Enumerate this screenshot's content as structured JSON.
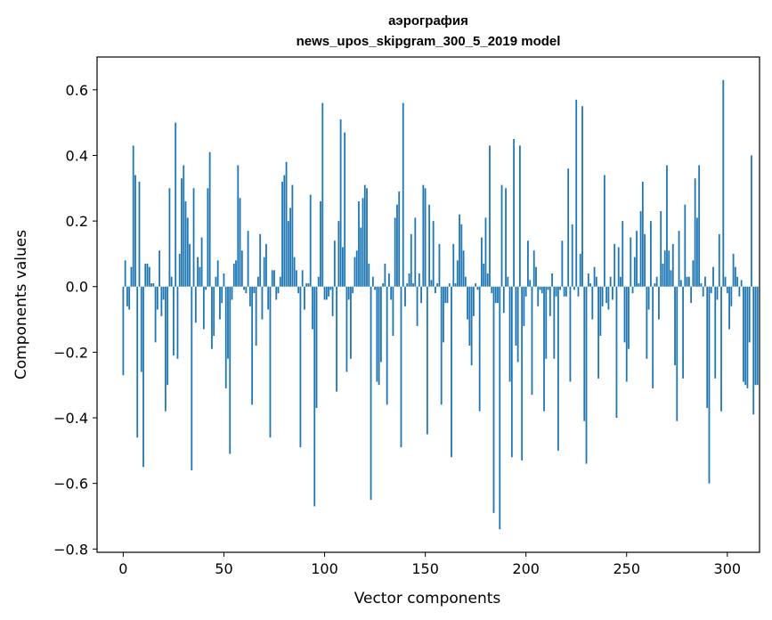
{
  "chart_data": {
    "type": "bar",
    "title": "аэрография",
    "subtitle": "news_upos_skipgram_300_5_2019 model",
    "xlabel": "Vector components",
    "ylabel": "Components values",
    "xlim": [
      -13,
      316
    ],
    "ylim": [
      -0.81,
      0.7
    ],
    "xticks": [
      0,
      50,
      100,
      150,
      200,
      250,
      300
    ],
    "xtick_labels": [
      "0",
      "50",
      "100",
      "150",
      "200",
      "250",
      "300"
    ],
    "yticks": [
      -0.8,
      -0.6,
      -0.4,
      -0.2,
      0.0,
      0.2,
      0.4,
      0.6
    ],
    "ytick_labels": [
      "−0.8",
      "−0.6",
      "−0.4",
      "−0.2",
      "0.0",
      "0.2",
      "0.4",
      "0.6"
    ],
    "bar_color": "#1f77b4",
    "grid": false,
    "values": [
      -0.27,
      0.08,
      -0.06,
      -0.07,
      0.06,
      0.43,
      0.34,
      -0.46,
      0.32,
      -0.26,
      -0.55,
      0.07,
      0.07,
      0.06,
      0.01,
      0.01,
      -0.17,
      -0.07,
      0.11,
      -0.09,
      -0.04,
      -0.38,
      -0.3,
      0.3,
      0.03,
      -0.21,
      0.5,
      -0.22,
      0.1,
      0.33,
      0.37,
      0.26,
      0.21,
      0.13,
      -0.56,
      0.3,
      -0.11,
      0.09,
      0.06,
      0.15,
      -0.13,
      -0.01,
      0.3,
      0.41,
      -0.19,
      -0.15,
      0.03,
      0.08,
      -0.1,
      -0.05,
      0.04,
      -0.31,
      -0.22,
      -0.51,
      -0.04,
      0.07,
      0.08,
      0.37,
      0.27,
      0.11,
      -0.01,
      -0.02,
      0.17,
      -0.06,
      -0.36,
      -0.02,
      -0.18,
      0.03,
      0.16,
      -0.1,
      0.09,
      0.13,
      -0.07,
      -0.46,
      0.05,
      0.05,
      -0.04,
      -0.02,
      0.03,
      0.32,
      0.34,
      0.38,
      0.2,
      0.24,
      0.31,
      0.09,
      0.05,
      -0.02,
      -0.49,
      0.05,
      -0.07,
      0.01,
      0.01,
      0.28,
      -0.13,
      -0.67,
      -0.37,
      0.03,
      0.26,
      0.56,
      -0.04,
      -0.04,
      -0.03,
      -0.01,
      -0.09,
      0.14,
      -0.32,
      0.2,
      0.51,
      0.12,
      0.47,
      -0.26,
      -0.04,
      -0.22,
      -0.02,
      0.09,
      0.11,
      0.26,
      0.18,
      0.27,
      0.31,
      0.3,
      0.07,
      -0.65,
      0.03,
      -0.01,
      -0.29,
      -0.3,
      -0.23,
      0.01,
      0.07,
      -0.36,
      0.04,
      -0.04,
      -0.15,
      0.21,
      0.25,
      0.29,
      -0.49,
      0.56,
      -0.06,
      0.01,
      0.04,
      0.16,
      0.01,
      0.21,
      -0.12,
      0.04,
      -0.05,
      0.31,
      0.3,
      -0.45,
      0.25,
      0.02,
      0.2,
      -0.02,
      0.01,
      0.13,
      -0.36,
      -0.17,
      -0.05,
      -0.05,
      0.01,
      -0.52,
      0.13,
      0.01,
      0.08,
      0.22,
      0.19,
      0.11,
      0.03,
      -0.1,
      -0.18,
      -0.24,
      -0.09,
      0.01,
      -0.01,
      -0.38,
      0.15,
      0.07,
      0.21,
      0.04,
      0.43,
      -0.02,
      -0.69,
      -0.05,
      -0.05,
      -0.74,
      0.31,
      -0.08,
      0.3,
      0.03,
      -0.29,
      -0.52,
      0.45,
      -0.18,
      -0.23,
      0.43,
      -0.53,
      -0.12,
      -0.03,
      0.14,
      0.02,
      -0.33,
      0.11,
      0.06,
      -0.06,
      -0.01,
      -0.02,
      -0.38,
      -0.22,
      -0.01,
      -0.09,
      0.04,
      -0.22,
      -0.03,
      -0.5,
      -0.01,
      0.14,
      -0.03,
      -0.03,
      0.36,
      -0.29,
      0.19,
      -0.01,
      0.57,
      -0.03,
      0.1,
      0.55,
      -0.41,
      -0.54,
      0.04,
      0.01,
      -0.1,
      0.06,
      0.03,
      -0.28,
      -0.15,
      -0.06,
      0.34,
      -0.05,
      -0.07,
      0.03,
      -0.04,
      0.13,
      -0.4,
      0.12,
      0.03,
      0.2,
      -0.17,
      -0.29,
      -0.19,
      0.15,
      -0.02,
      0.09,
      0.17,
      0.01,
      0.23,
      0.32,
      0.16,
      -0.22,
      -0.07,
      0.2,
      -0.31,
      0.01,
      0.03,
      -0.1,
      0.23,
      0.07,
      0.11,
      0.37,
      0.11,
      0.05,
      0.13,
      -0.24,
      -0.41,
      0.17,
      0.02,
      -0.28,
      0.25,
      0.03,
      0.03,
      -0.05,
      0.08,
      0.33,
      0.21,
      0.37,
      0.01,
      -0.03,
      0.03,
      -0.37,
      -0.6,
      -0.02,
      0.06,
      -0.28,
      -0.04,
      0.16,
      -0.38,
      0.63,
      0.03,
      -0.02,
      -0.13,
      -0.06,
      0.1,
      0.06,
      0.03,
      -0.03,
      0.02,
      -0.29,
      -0.3,
      -0.31,
      -0.17,
      0.4,
      -0.39,
      -0.3,
      -0.3
    ]
  }
}
